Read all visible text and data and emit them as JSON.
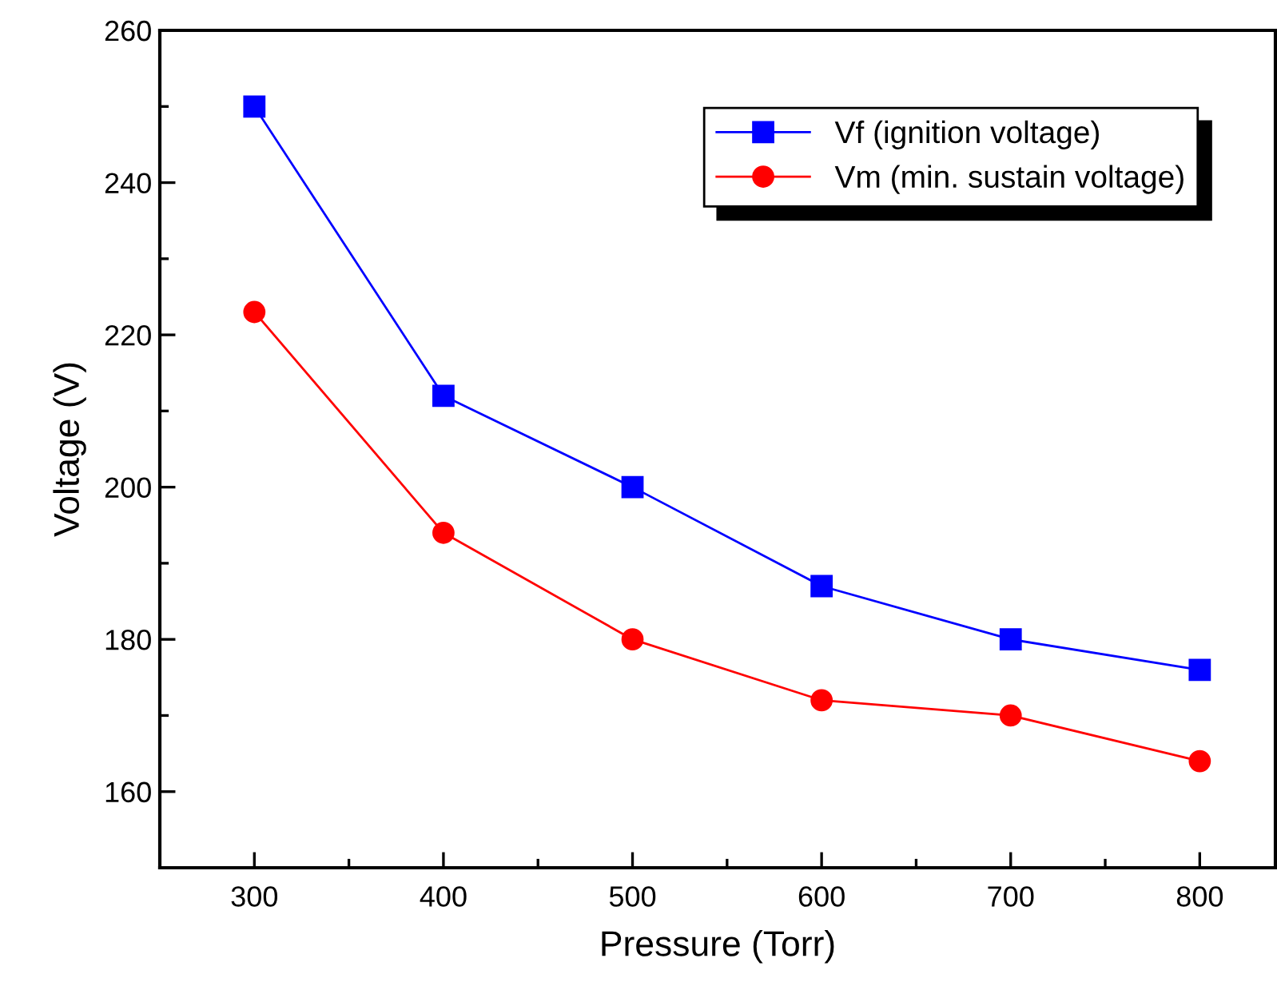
{
  "chart_data": {
    "type": "line",
    "xlabel": "Pressure (Torr)",
    "ylabel": "Voltage (V)",
    "x": [
      300,
      400,
      500,
      600,
      700,
      800
    ],
    "series": [
      {
        "name": "Vf (ignition voltage)",
        "color": "#0000ff",
        "marker": "square",
        "values": [
          250,
          212,
          200,
          187,
          180,
          176
        ]
      },
      {
        "name": "Vm (min. sustain voltage)",
        "color": "#ff0000",
        "marker": "circle",
        "values": [
          223,
          194,
          180,
          172,
          170,
          164
        ]
      }
    ],
    "xlim": [
      250,
      840
    ],
    "xticks": [
      300,
      400,
      500,
      600,
      700,
      800
    ],
    "ylim": [
      150,
      260
    ],
    "yticks": [
      160,
      180,
      200,
      220,
      240,
      260
    ],
    "grid": false,
    "legend": "top right",
    "line_style": "solid"
  }
}
